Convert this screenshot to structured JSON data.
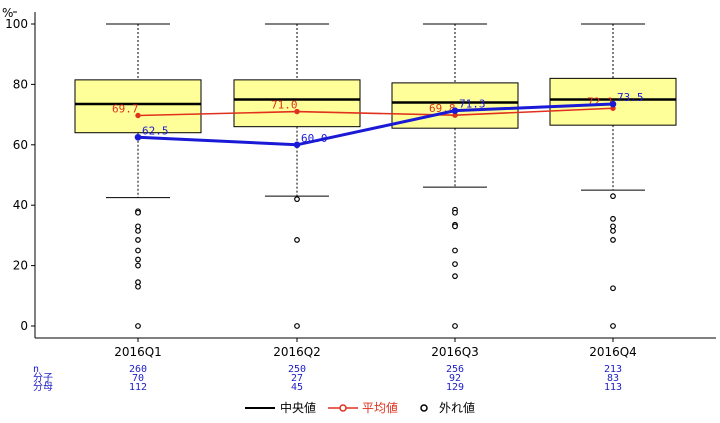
{
  "chart_data": {
    "type": "box",
    "y_unit": "%",
    "ylim": [
      0,
      100
    ],
    "yticks": [
      0,
      20,
      40,
      60,
      80,
      100
    ],
    "categories": [
      "2016Q1",
      "2016Q2",
      "2016Q3",
      "2016Q4"
    ],
    "boxes": [
      {
        "q1": 64.0,
        "median": 73.5,
        "q3": 81.5,
        "whisker_low": 42.5,
        "whisker_high": 100,
        "outliers": [
          38,
          37.5,
          33,
          31.5,
          28.5,
          25,
          22,
          20,
          14.5,
          13,
          0
        ]
      },
      {
        "q1": 66.0,
        "median": 75.0,
        "q3": 81.5,
        "whisker_low": 43.0,
        "whisker_high": 100,
        "outliers": [
          42,
          28.5,
          0
        ]
      },
      {
        "q1": 65.5,
        "median": 74.0,
        "q3": 80.5,
        "whisker_low": 46.0,
        "whisker_high": 100,
        "outliers": [
          38.5,
          37.5,
          33.5,
          33,
          25,
          20.5,
          16.5,
          0
        ]
      },
      {
        "q1": 66.5,
        "median": 75.0,
        "q3": 82.0,
        "whisker_low": 45.0,
        "whisker_high": 100,
        "outliers": [
          43,
          35.5,
          33,
          31.5,
          28.5,
          12.5,
          0
        ]
      }
    ],
    "series": [
      {
        "name": "平均値",
        "values": [
          69.7,
          71.0,
          69.8,
          72.1
        ],
        "labels": [
          "69.7",
          "71.0",
          "69.8",
          "72.1"
        ],
        "color": "#e0301e"
      },
      {
        "values": [
          62.5,
          60.0,
          71.3,
          73.5
        ],
        "labels": [
          "62.5",
          "60.0",
          "71.3",
          "73.5"
        ],
        "color": "#1a1ad6"
      }
    ],
    "stats": {
      "row_labels": [
        "n",
        "分子",
        "分母"
      ],
      "values": [
        [
          "260",
          "70",
          "112"
        ],
        [
          "250",
          "27",
          "45"
        ],
        [
          "256",
          "92",
          "129"
        ],
        [
          "213",
          "83",
          "113"
        ]
      ]
    },
    "legend": {
      "position": "bottom",
      "items": [
        {
          "label": "中央値",
          "type": "median",
          "color": "#000000"
        },
        {
          "label": "平均値",
          "type": "mean",
          "color": "#e0301e"
        },
        {
          "label": "外れ値",
          "type": "outlier",
          "color": "#000000"
        }
      ]
    },
    "colors": {
      "box_fill": "#ffff99",
      "highlight": "#1a1ad6",
      "mean": "#e0301e",
      "stat_text": "#2020c8"
    }
  }
}
